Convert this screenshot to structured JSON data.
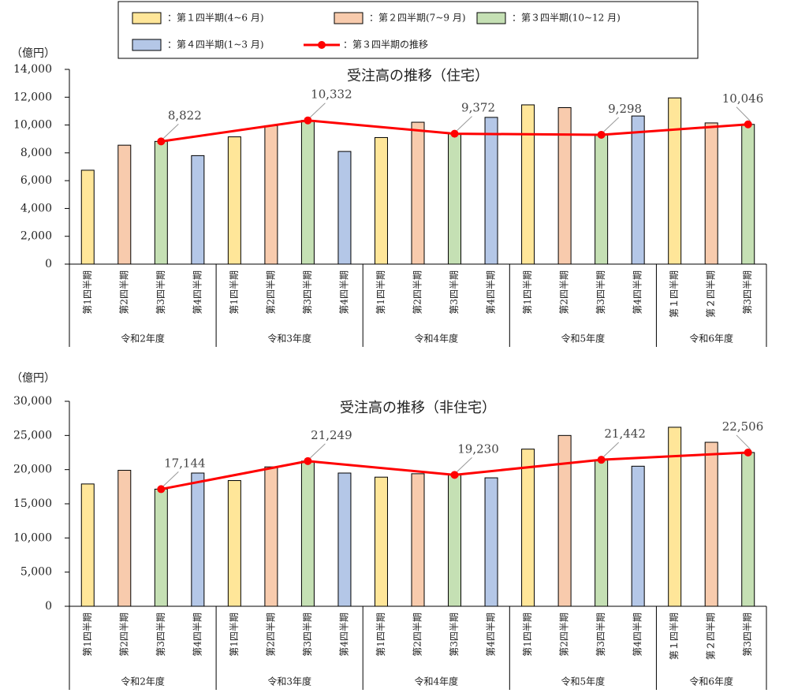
{
  "legend": [
    {
      "name": "：第１四半期(4~6 月)",
      "color": "#ffe699"
    },
    {
      "name": "：第２四半期(7~9 月)",
      "color": "#f8cbad"
    },
    {
      "name": "：第３四半期(10~12 月)",
      "color": "#c5e0b4"
    },
    {
      "name": "：第４四半期(1~3 月)",
      "color": "#b4c7e7"
    },
    {
      "name": "：第３四半期の推移",
      "color": "#ff0000"
    }
  ],
  "chart_data": [
    {
      "type": "bar",
      "title": "受注高の推移（住宅）",
      "unit": "（億円）",
      "groups": [
        {
          "label": "令和2年度",
          "categories": [
            "第1四半期",
            "第2四半期",
            "第3四半期",
            "第4四半期"
          ]
        },
        {
          "label": "令和3年度",
          "categories": [
            "第1四半期",
            "第2四半期",
            "第3四半期",
            "第4四半期"
          ]
        },
        {
          "label": "令和4年度",
          "categories": [
            "第1四半期",
            "第2四半期",
            "第3四半期",
            "第4四半期"
          ]
        },
        {
          "label": "令和5年度",
          "categories": [
            "第1四半期",
            "第2四半期",
            "第3四半期",
            "第4四半期"
          ]
        },
        {
          "label": "令和6年度",
          "categories": [
            "第１四半期",
            "第２四半期",
            "第3四半期"
          ]
        }
      ],
      "series": [
        {
          "values": [
            6750,
            9150,
            9100,
            11450,
            11950
          ]
        },
        {
          "values": [
            8550,
            9950,
            10200,
            11250,
            10150
          ]
        },
        {
          "values": [
            8822,
            10332,
            9372,
            9298,
            10046
          ]
        },
        {
          "values": [
            7800,
            8100,
            10550,
            10650,
            null
          ]
        },
        {
          "type": "line",
          "values": [
            8822,
            10332,
            9372,
            9298,
            10046
          ],
          "value_labels": [
            "8,822",
            "10,332",
            "9,372",
            "9,298",
            "10,046"
          ]
        }
      ],
      "ylim": [
        0,
        14000
      ],
      "yticks": [
        0,
        {
          "value": 2000,
          "label": "2,000"
        },
        {
          "value": 4000,
          "label": "4,000"
        },
        {
          "value": 6000,
          "label": "6,000"
        },
        {
          "value": 8000,
          "label": "8,000"
        },
        {
          "value": 10000,
          "label": "10,000"
        },
        {
          "value": 12000,
          "label": "12,000"
        },
        {
          "value": 14000,
          "label": "14,000"
        }
      ]
    },
    {
      "type": "bar",
      "title": "受注高の推移（非住宅）",
      "unit": "（億円）",
      "groups": [
        {
          "label": "令和2年度",
          "categories": [
            "第1四半期",
            "第2四半期",
            "第3四半期",
            "第4四半期"
          ]
        },
        {
          "label": "令和3年度",
          "categories": [
            "第1四半期",
            "第2四半期",
            "第3四半期",
            "第4四半期"
          ]
        },
        {
          "label": "令和4年度",
          "categories": [
            "第1四半期",
            "第2四半期",
            "第3四半期",
            "第4四半期"
          ]
        },
        {
          "label": "令和5年度",
          "categories": [
            "第1四半期",
            "第2四半期",
            "第3四半期",
            "第4四半期"
          ]
        },
        {
          "label": "令和6年度",
          "categories": [
            "第１四半期",
            "第２四半期",
            "第3四半期"
          ]
        }
      ],
      "series": [
        {
          "values": [
            17900,
            18400,
            18900,
            23000,
            26200
          ]
        },
        {
          "values": [
            19900,
            20400,
            19400,
            25000,
            24000
          ]
        },
        {
          "values": [
            17144,
            21249,
            19230,
            21442,
            22506
          ]
        },
        {
          "values": [
            19500,
            19500,
            18800,
            20500,
            null
          ]
        },
        {
          "type": "line",
          "values": [
            17144,
            21249,
            19230,
            21442,
            22506
          ],
          "value_labels": [
            "17,144",
            "21,249",
            "19,230",
            "21,442",
            "22,506"
          ]
        }
      ],
      "ylim": [
        0,
        30000
      ],
      "yticks": [
        0,
        {
          "value": 5000,
          "label": "5,000"
        },
        {
          "value": 10000,
          "label": "10,000"
        },
        {
          "value": 15000,
          "label": "15,000"
        },
        {
          "value": 20000,
          "label": "20,000"
        },
        {
          "value": 25000,
          "label": "25,000"
        },
        {
          "value": 30000,
          "label": "30,000"
        }
      ]
    }
  ]
}
